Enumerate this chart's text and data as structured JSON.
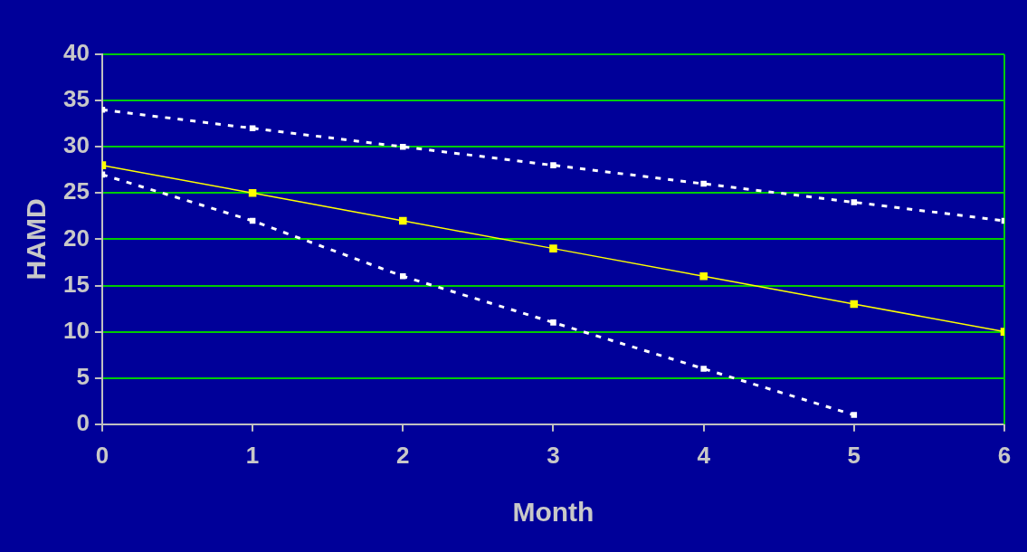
{
  "chart_data": {
    "type": "line",
    "xlabel": "Month",
    "ylabel": "HAMD",
    "x": [
      0,
      1,
      2,
      3,
      4,
      5,
      6
    ],
    "series": [
      {
        "color": "#ffffff",
        "values": [
          34,
          32,
          30,
          28,
          26,
          24,
          22
        ],
        "line_style": "dashed",
        "marker": "square"
      },
      {
        "color": "#ffff00",
        "values": [
          28,
          25,
          22,
          19,
          16,
          13,
          10
        ],
        "line_style": "solid",
        "marker": "square"
      },
      {
        "color": "#ffffff",
        "values": [
          27,
          22,
          16,
          11,
          6,
          1,
          null
        ],
        "line_style": "dashed",
        "marker": "square"
      }
    ],
    "xlim": [
      0,
      6
    ],
    "xticks": [
      0,
      1,
      2,
      3,
      4,
      5,
      6
    ],
    "ylim": [
      0,
      40
    ],
    "yticks": [
      0,
      5,
      10,
      15,
      20,
      25,
      30,
      35,
      40
    ],
    "grid": "y",
    "legend": false
  }
}
